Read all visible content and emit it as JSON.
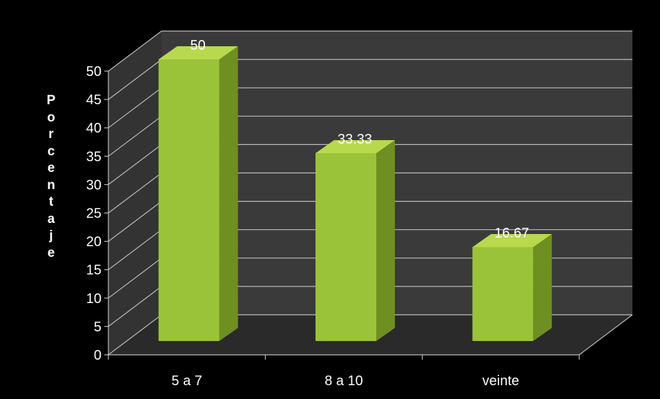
{
  "chart_data": {
    "type": "bar",
    "categories": [
      "5 a 7",
      "8 a 10",
      "veinte"
    ],
    "values": [
      50,
      33.33,
      16.67
    ],
    "data_labels": [
      "50",
      "33.33",
      "16.67"
    ],
    "ylabel": "Porcentaje",
    "xlabel": "",
    "title": "",
    "ylim": [
      0,
      50
    ],
    "yticks": [
      0,
      5,
      10,
      15,
      20,
      25,
      30,
      35,
      40,
      45,
      50
    ],
    "grid": true,
    "style": "3d",
    "colors": {
      "background": "#000000",
      "wall": "#3a3a3a",
      "floor": "#2a2a2a",
      "bar_front": "#9bc33a",
      "bar_top": "#b8d94e",
      "bar_side": "#6f8f22",
      "gridline": "#bfbfbf",
      "text": "#ffffff"
    }
  }
}
